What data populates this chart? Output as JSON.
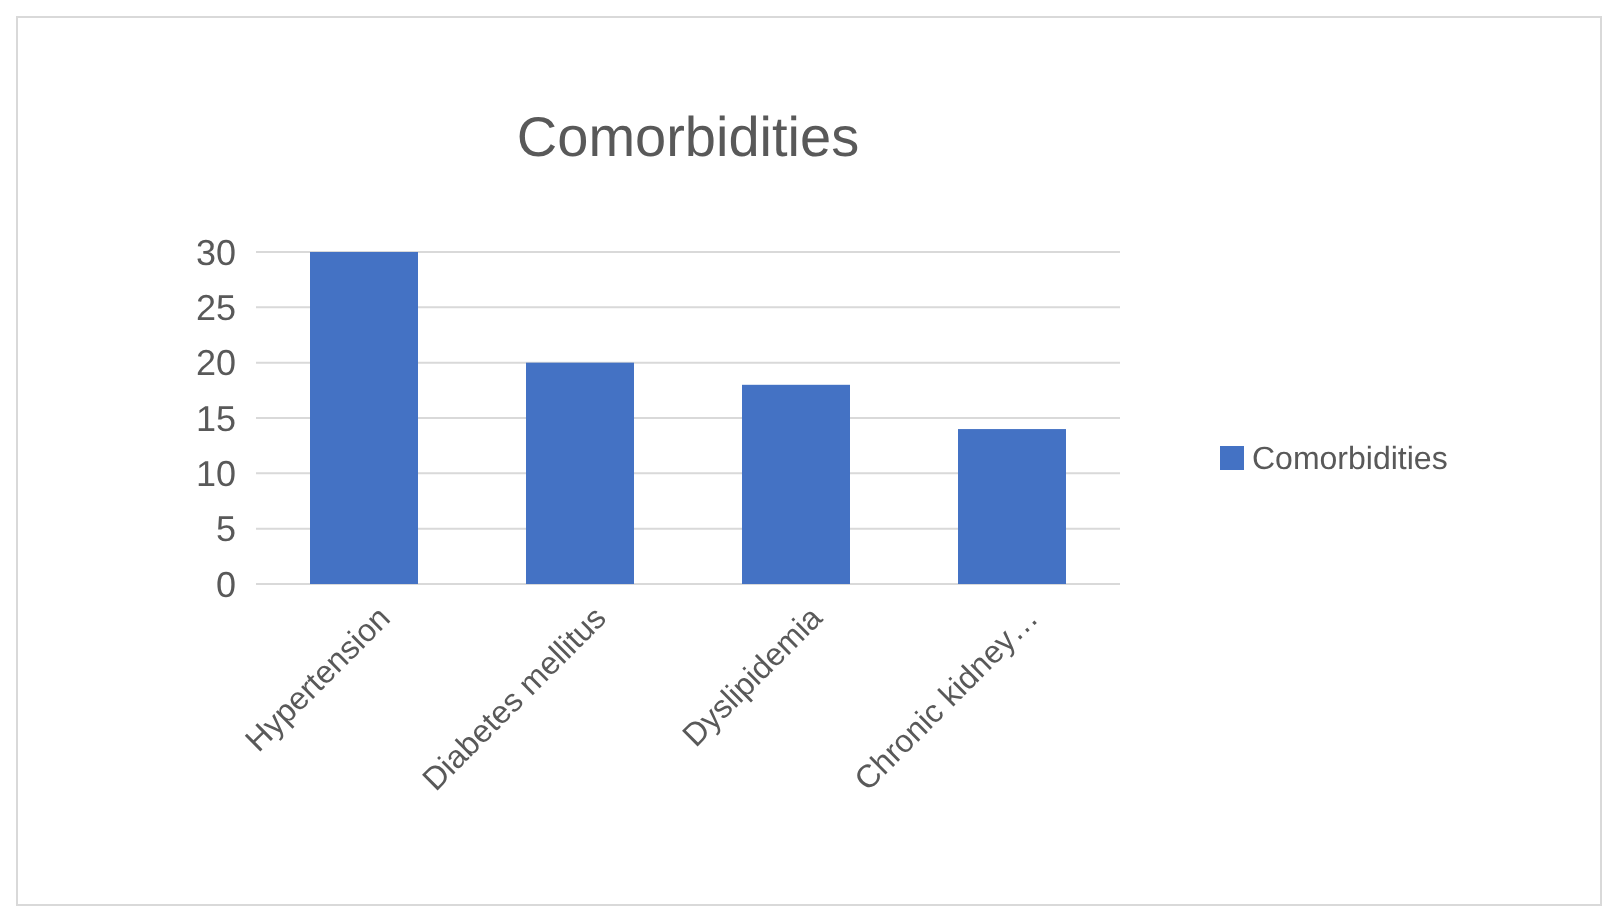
{
  "chart_data": {
    "type": "bar",
    "title": "Comorbidities",
    "categories": [
      "Hypertension",
      "Diabetes mellitus",
      "Dyslipidemia",
      "Chronic kidney…"
    ],
    "series": [
      {
        "name": "Comorbidities",
        "color": "#4472c4",
        "values": [
          30,
          20,
          18,
          14
        ]
      }
    ],
    "ylim": [
      0,
      30
    ],
    "yticks": [
      0,
      5,
      10,
      15,
      20,
      25,
      30
    ],
    "grid": "y",
    "legend": "right"
  }
}
